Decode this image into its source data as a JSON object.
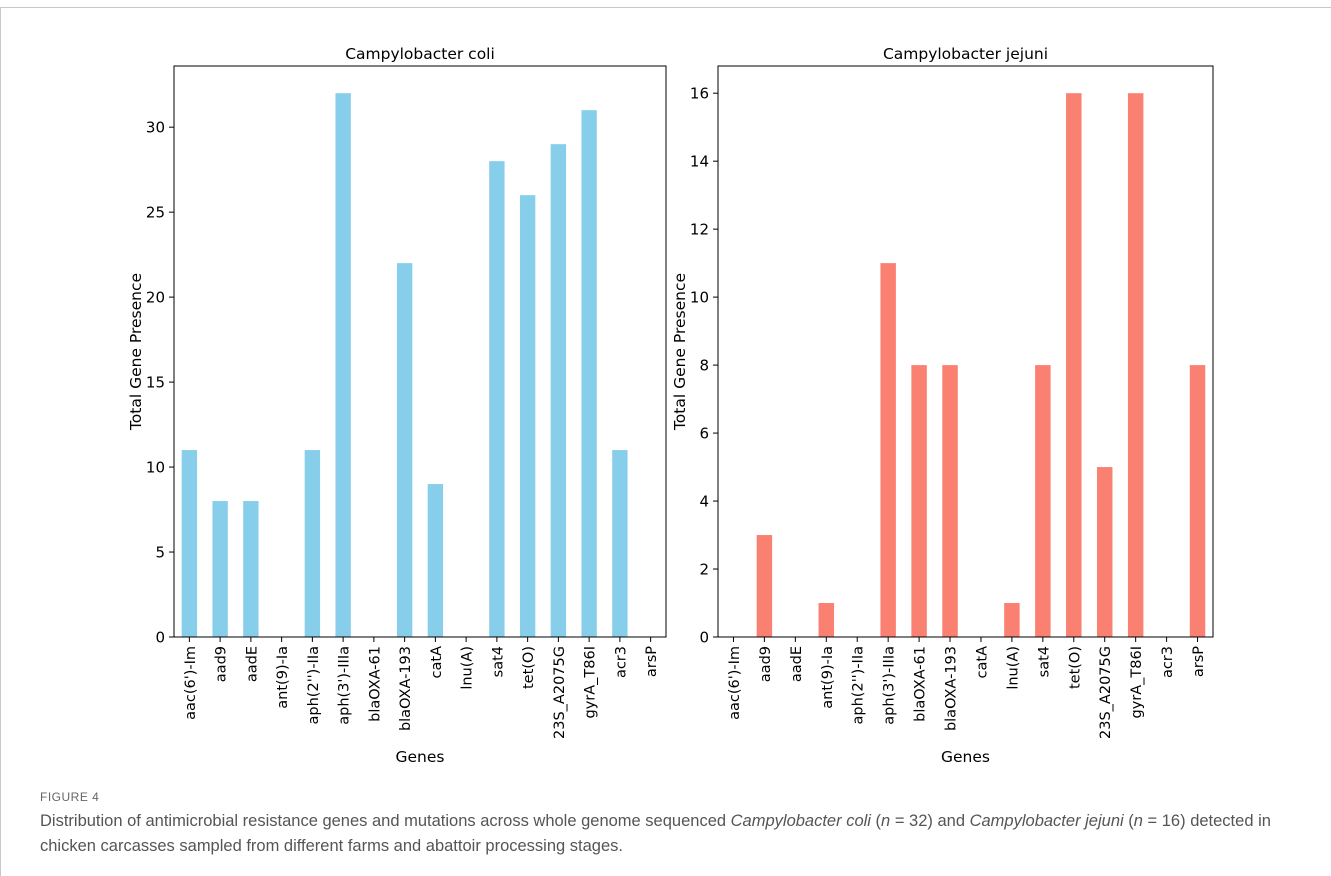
{
  "figure": {
    "label": "FIGURE 4",
    "caption": {
      "p1": "Distribution of antimicrobial resistance genes and mutations across whole genome sequenced ",
      "species1": "Campylobacter coli",
      "p2": " (",
      "n1_italic": "n",
      "p3": " = 32) and ",
      "species2": "Campylobacter jejuni",
      "p4": " (",
      "n2_italic": "n",
      "p5": " = 16) detected in chicken carcasses sampled from different farms and abattoir processing stages."
    }
  },
  "chart_data": [
    {
      "type": "bar",
      "title": "Campylobacter coli",
      "xlabel": "Genes",
      "ylabel": "Total Gene Presence",
      "categories": [
        "aac(6')-Im",
        "aad9",
        "aadE",
        "ant(9)-Ia",
        "aph(2'')-IIa",
        "aph(3')-IIIa",
        "blaOXA-61",
        "blaOXA-193",
        "catA",
        "lnu(A)",
        "sat4",
        "tet(O)",
        "23S_A2075G",
        "gyrA_T86I",
        "acr3",
        "arsP"
      ],
      "values": [
        11,
        8,
        8,
        0,
        11,
        32,
        0,
        22,
        9,
        0,
        28,
        26,
        29,
        31,
        11,
        0
      ],
      "ylim": [
        0,
        33.6
      ],
      "yticks": [
        0,
        5,
        10,
        15,
        20,
        25,
        30
      ],
      "color": "#87ceeb",
      "grid": false
    },
    {
      "type": "bar",
      "title": "Campylobacter jejuni",
      "xlabel": "Genes",
      "ylabel": "Total Gene Presence",
      "categories": [
        "aac(6')-Im",
        "aad9",
        "aadE",
        "ant(9)-Ia",
        "aph(2'')-IIa",
        "aph(3')-IIIa",
        "blaOXA-61",
        "blaOXA-193",
        "catA",
        "lnu(A)",
        "sat4",
        "tet(O)",
        "23S_A2075G",
        "gyrA_T86I",
        "acr3",
        "arsP"
      ],
      "values": [
        0,
        3,
        0,
        1,
        0,
        11,
        8,
        8,
        0,
        1,
        8,
        16,
        5,
        16,
        0,
        8
      ],
      "ylim": [
        0,
        16.8
      ],
      "yticks": [
        0,
        2,
        4,
        6,
        8,
        10,
        12,
        14,
        16
      ],
      "color": "#fa8072",
      "grid": false
    }
  ]
}
